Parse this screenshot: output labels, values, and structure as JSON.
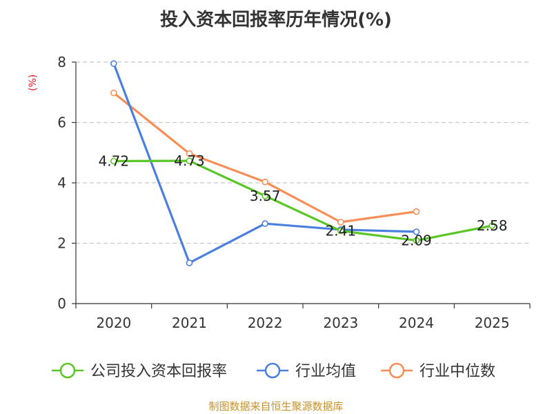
{
  "chart_data": {
    "type": "line",
    "title": "投入资本回报率历年情况(%)",
    "ylabel": "(%)",
    "xlabel": "",
    "categories": [
      "2020",
      "2021",
      "2022",
      "2023",
      "2024",
      "2025"
    ],
    "ylim": [
      0,
      8
    ],
    "yticks": [
      0,
      2,
      4,
      6,
      8
    ],
    "grid": true,
    "legend_position": "bottom",
    "series": [
      {
        "name": "公司投入资本回报率",
        "color": "#5ac626",
        "values": [
          4.72,
          4.73,
          3.57,
          2.41,
          2.09,
          2.58
        ],
        "labels": [
          "4.72",
          "4.73",
          "3.57",
          "2.41",
          "2.09",
          "2.58"
        ]
      },
      {
        "name": "行业均值",
        "color": "#4a7fdd",
        "values": [
          7.95,
          1.35,
          2.65,
          2.45,
          2.38,
          null
        ]
      },
      {
        "name": "行业中位数",
        "color": "#f88e56",
        "values": [
          6.98,
          4.97,
          4.03,
          2.7,
          3.05,
          null
        ]
      }
    ]
  },
  "footer": {
    "source": "制图数据来自恒生聚源数据库"
  }
}
